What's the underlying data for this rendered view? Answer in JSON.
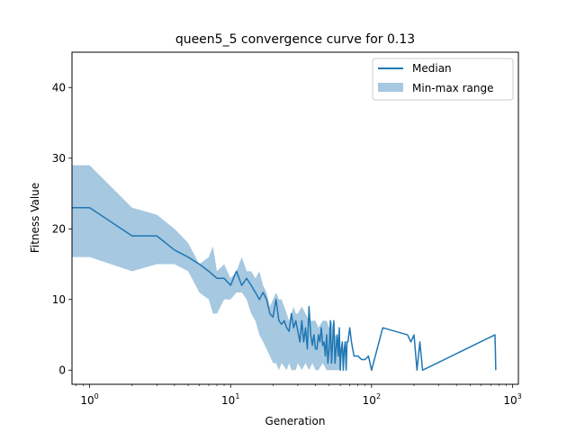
{
  "chart_data": {
    "type": "line",
    "title": "queen5_5 convergence curve for 0.13",
    "xlabel": "Generation",
    "ylabel": "Fitness Value",
    "x_scale": "log",
    "xlim": [
      0.75,
      1100
    ],
    "ylim": [
      -2,
      45
    ],
    "x_ticks": [
      {
        "value": 1,
        "base": "10",
        "exp": "0"
      },
      {
        "value": 10,
        "base": "10",
        "exp": "1"
      },
      {
        "value": 100,
        "base": "10",
        "exp": "2"
      },
      {
        "value": 1000,
        "base": "10",
        "exp": "3"
      }
    ],
    "y_ticks": [
      0,
      10,
      20,
      30,
      40
    ],
    "grid": false,
    "legend_position": "top-right",
    "series": [
      {
        "name": "Median",
        "kind": "line",
        "color": "#1f77b4",
        "x": [
          0.75,
          1,
          2,
          3,
          4,
          5,
          6,
          7,
          8,
          9,
          10,
          11,
          12,
          13,
          14,
          15,
          16,
          17,
          18,
          19,
          20,
          21,
          22,
          23,
          24,
          25,
          26,
          27,
          28,
          29,
          30,
          31,
          32,
          33,
          34,
          35,
          36,
          37,
          38,
          39,
          40,
          41,
          42,
          43,
          44,
          45,
          46,
          47,
          48,
          49,
          50,
          51,
          52,
          53,
          54,
          55,
          56,
          57,
          58,
          59,
          60,
          61,
          62,
          63,
          64,
          65,
          66,
          67,
          68,
          70,
          72,
          75,
          80,
          85,
          90,
          95,
          100,
          120,
          180,
          190,
          195,
          200,
          210,
          220,
          230,
          750,
          755,
          760
        ],
        "values": [
          23,
          23,
          19,
          19,
          17,
          16,
          15,
          14,
          13,
          13,
          12,
          14,
          12,
          13,
          12,
          11,
          10,
          11,
          10,
          8,
          7.5,
          10,
          7,
          6.5,
          7,
          6,
          5.5,
          8,
          6,
          7,
          5.5,
          4,
          7,
          4,
          6,
          3,
          9,
          5,
          3.5,
          5,
          3,
          3,
          5,
          4,
          6,
          3.5,
          4,
          2,
          5,
          1,
          3,
          7,
          1,
          4,
          7,
          1,
          3,
          5,
          2,
          6,
          0,
          3,
          4,
          0,
          3,
          4,
          0,
          4,
          4,
          6,
          4,
          2,
          2,
          1.5,
          1.5,
          2,
          0,
          6,
          5,
          4,
          4.5,
          5,
          0,
          4,
          0,
          5,
          3,
          0
        ]
      },
      {
        "name": "Min-max range",
        "kind": "band",
        "color": "#a6c8e0",
        "x": [
          0.75,
          1,
          2,
          3,
          4,
          5,
          6,
          7,
          7.5,
          8,
          9,
          10,
          11,
          12,
          13,
          14,
          15,
          16,
          17,
          18,
          19,
          20,
          21,
          22,
          23,
          24,
          25,
          26,
          27,
          28,
          29,
          30,
          32,
          34,
          36,
          38,
          40,
          42,
          45,
          48,
          50,
          52,
          55,
          60
        ],
        "min": [
          16,
          16,
          14,
          15,
          15,
          14,
          11,
          10,
          8,
          8,
          10,
          10,
          11,
          11,
          10,
          8,
          7,
          5,
          4,
          3,
          2,
          1,
          1,
          0,
          1,
          0.5,
          0,
          1,
          0,
          0,
          0,
          1,
          0,
          1,
          0,
          1,
          0,
          0,
          1,
          0,
          0,
          0,
          0,
          0
        ],
        "max": [
          29,
          29,
          23,
          22,
          20,
          18,
          15,
          16,
          17.5,
          14,
          15,
          13,
          14,
          16,
          14,
          14,
          13,
          14,
          12,
          11,
          9,
          10,
          11,
          10,
          10,
          9,
          8,
          7,
          8,
          9,
          8,
          8,
          9,
          8,
          7,
          7,
          7,
          6,
          7,
          7,
          6,
          7,
          5,
          4
        ]
      }
    ]
  }
}
